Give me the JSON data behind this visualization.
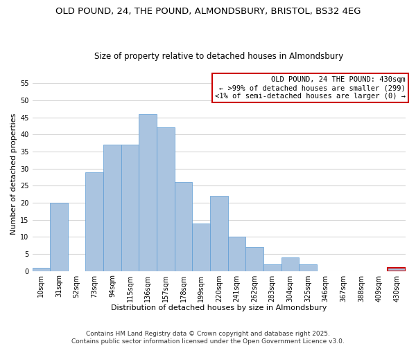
{
  "title": "OLD POUND, 24, THE POUND, ALMONDSBURY, BRISTOL, BS32 4EG",
  "subtitle": "Size of property relative to detached houses in Almondsbury",
  "xlabel": "Distribution of detached houses by size in Almondsbury",
  "ylabel": "Number of detached properties",
  "bar_labels": [
    "10sqm",
    "31sqm",
    "52sqm",
    "73sqm",
    "94sqm",
    "115sqm",
    "136sqm",
    "157sqm",
    "178sqm",
    "199sqm",
    "220sqm",
    "241sqm",
    "262sqm",
    "283sqm",
    "304sqm",
    "325sqm",
    "346sqm",
    "367sqm",
    "388sqm",
    "409sqm",
    "430sqm"
  ],
  "bar_values": [
    1,
    20,
    0,
    29,
    37,
    37,
    46,
    42,
    26,
    14,
    22,
    10,
    7,
    2,
    4,
    2,
    0,
    0,
    0,
    0,
    1
  ],
  "bar_color": "#aac4e0",
  "bar_edge_color": "#5b9bd5",
  "ylim": [
    0,
    57
  ],
  "yticks": [
    0,
    5,
    10,
    15,
    20,
    25,
    30,
    35,
    40,
    45,
    50,
    55
  ],
  "highlight_index": 20,
  "highlight_edge_color": "#cc0000",
  "annotation_box_edge_color": "#cc0000",
  "annotation_lines": [
    "OLD POUND, 24 THE POUND: 430sqm",
    "← >99% of detached houses are smaller (299)",
    "<1% of semi-detached houses are larger (0) →"
  ],
  "footer_lines": [
    "Contains HM Land Registry data © Crown copyright and database right 2025.",
    "Contains public sector information licensed under the Open Government Licence v3.0."
  ],
  "background_color": "#ffffff",
  "grid_color": "#d8d8d8",
  "title_fontsize": 9.5,
  "subtitle_fontsize": 8.5,
  "axis_label_fontsize": 8,
  "tick_fontsize": 7,
  "annotation_fontsize": 7.5,
  "footer_fontsize": 6.5
}
